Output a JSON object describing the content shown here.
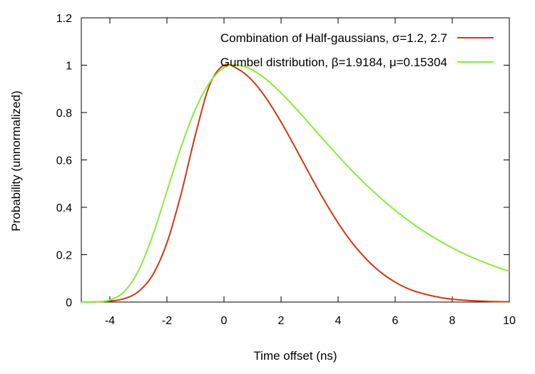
{
  "chart_data": {
    "type": "line",
    "title": "",
    "xlabel": "Time offset (ns)",
    "ylabel": "Probability (unnormalized)",
    "xlim": [
      -5,
      10
    ],
    "ylim": [
      0,
      1.2
    ],
    "xticks": [
      "-4",
      "-2",
      "0",
      "2",
      "4",
      "6",
      "8",
      "10"
    ],
    "xtick_values": [
      -4,
      -2,
      0,
      2,
      4,
      6,
      8,
      10
    ],
    "yticks": [
      "0",
      "0.2",
      "0.4",
      "0.6",
      "0.8",
      "1",
      "1.2"
    ],
    "ytick_values": [
      0,
      0.2,
      0.4,
      0.6,
      0.8,
      1,
      1.2
    ],
    "grid": false,
    "legend_position": "top-right",
    "series": [
      {
        "name": "Combination of Half-gaussians, σ=1.2, 2.7",
        "color": "#d2380f",
        "x": [
          -5,
          -4.5,
          -4,
          -3.5,
          -3,
          -2.5,
          -2,
          -1.5,
          -1,
          -0.5,
          0,
          0.5,
          1,
          1.5,
          2,
          2.5,
          3,
          3.5,
          4,
          4.5,
          5,
          5.5,
          6,
          6.5,
          7,
          7.5,
          8,
          8.5,
          9,
          9.5,
          10
        ],
        "values": [
          0.0002,
          0.0009,
          0.0039,
          0.0141,
          0.0439,
          0.1142,
          0.2494,
          0.4578,
          0.7066,
          0.9169,
          1.0,
          0.983,
          0.934,
          0.857,
          0.76,
          0.652,
          0.54,
          0.432,
          0.334,
          0.249,
          0.18,
          0.125,
          0.084,
          0.054,
          0.035,
          0.021,
          0.012,
          0.007,
          0.004,
          0.002,
          0.001
        ]
      },
      {
        "name": "Gumbel distribution, β=1.9184, μ=0.15304",
        "color": "#87ec3b",
        "x": [
          -5,
          -4.5,
          -4,
          -3.5,
          -3,
          -2.5,
          -2,
          -1.5,
          -1,
          -0.5,
          0,
          0.5,
          1,
          1.5,
          2,
          2.5,
          3,
          3.5,
          4,
          4.5,
          5,
          5.5,
          6,
          6.5,
          7,
          7.5,
          8,
          8.5,
          9,
          9.5,
          10
        ],
        "values": [
          0.0001,
          0.001,
          0.0089,
          0.0434,
          0.1319,
          0.2805,
          0.4673,
          0.6554,
          0.8141,
          0.927,
          0.9894,
          1.0,
          0.9795,
          0.9381,
          0.883,
          0.8196,
          0.7522,
          0.684,
          0.6172,
          0.5534,
          0.4935,
          0.438,
          0.3872,
          0.341,
          0.2993,
          0.2621,
          0.2288,
          0.1993,
          0.1733,
          0.1503,
          0.1302
        ]
      }
    ]
  }
}
